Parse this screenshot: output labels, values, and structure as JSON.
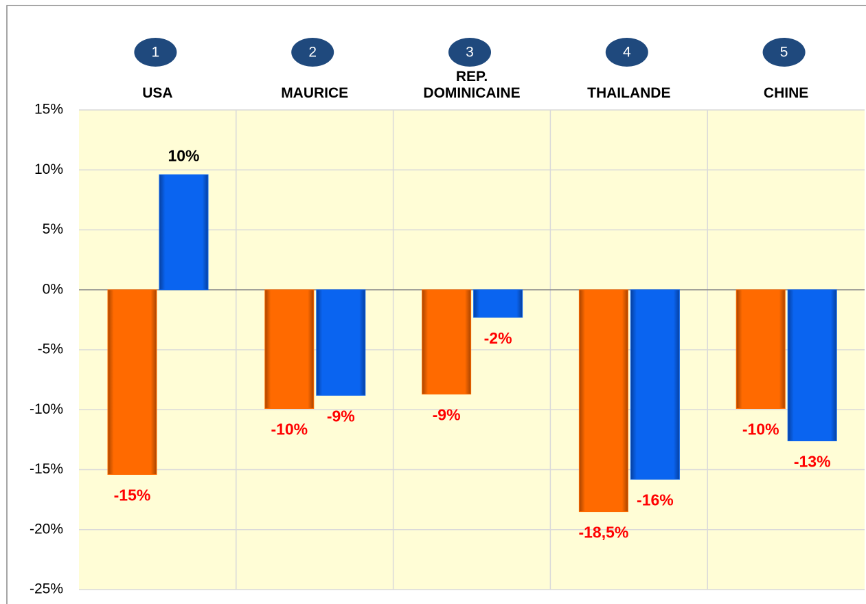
{
  "chart_data": {
    "type": "bar",
    "ranks": [
      "1",
      "2",
      "3",
      "4",
      "5"
    ],
    "categories": [
      "USA",
      "MAURICE",
      "REP. DOMINICAINE",
      "THAILANDE",
      "CHINE"
    ],
    "series": [
      {
        "color": "#ff6a00",
        "values": [
          -15.4,
          -9.9,
          -8.7,
          -18.5,
          -9.9
        ],
        "value_labels": [
          "-15%",
          "-10%",
          "-9%",
          "-18,5%",
          "-10%"
        ]
      },
      {
        "color": "#0a64f0",
        "values": [
          9.6,
          -8.8,
          -2.3,
          -15.8,
          -12.6
        ],
        "value_labels": [
          "10%",
          "-9%",
          "-2%",
          "-16%",
          "-13%"
        ]
      }
    ],
    "ylim": [
      -25,
      15
    ],
    "yticks": [
      {
        "value": -25,
        "label": "-25%"
      },
      {
        "value": -20,
        "label": "-20%"
      },
      {
        "value": -15,
        "label": "-15%"
      },
      {
        "value": -10,
        "label": "-10%"
      },
      {
        "value": -5,
        "label": "-5%"
      },
      {
        "value": 0,
        "label": "0%"
      },
      {
        "value": 5,
        "label": "5%"
      },
      {
        "value": 10,
        "label": "10%"
      },
      {
        "value": 15,
        "label": "15%"
      }
    ],
    "grid": true
  }
}
